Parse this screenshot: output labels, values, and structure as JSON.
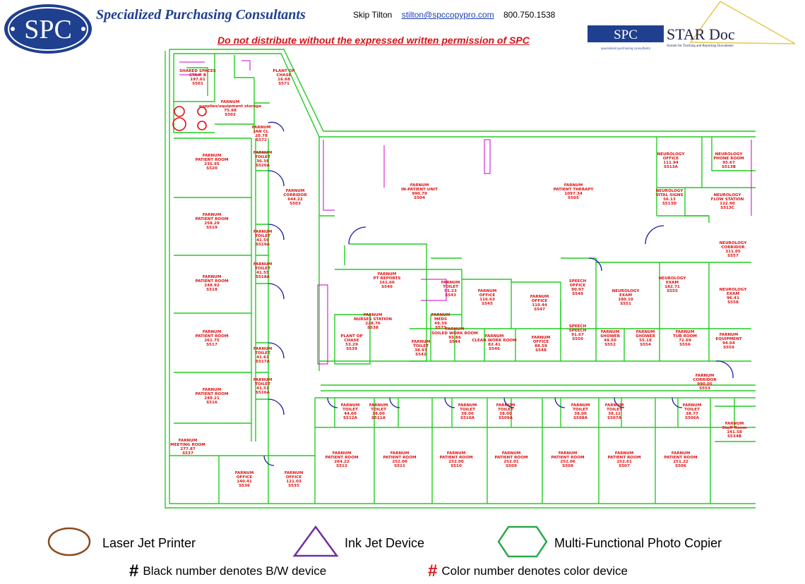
{
  "header": {
    "logo_text": "SPC",
    "company": "Specialized Purchasing Consultants",
    "contact_name": "Skip Tilton",
    "contact_email": "stilton@spccopypro.com",
    "contact_phone": "800.750.1538",
    "warning": "Do not distribute without the expressed written permission of SPC",
    "star_logo_left": "SPC",
    "star_logo_right": "STAR Doc",
    "star_logo_sub_left": "specialized purchasing consultants",
    "star_logo_sub_right": "System for Tracking and Reporting Documents"
  },
  "colors": {
    "walls": "#22cc22",
    "labels": "#e01010",
    "doors": "#1a1aaa",
    "furniture": "#cc00cc",
    "logo_blue": "#1f3f8f",
    "warning_red": "#d0141a"
  },
  "rooms": [
    {
      "lines": [
        "SHARED SPACES",
        "STAIR B",
        "197.61",
        "S501"
      ]
    },
    {
      "lines": [
        "PLANT OP",
        "CHASE",
        "16.68",
        "S571"
      ]
    },
    {
      "lines": [
        "FARNUM",
        "supplies/equipment storage",
        "75.98",
        "S502"
      ]
    },
    {
      "lines": [
        "FARNUM",
        "JAN CL",
        "20.78",
        "S572"
      ]
    },
    {
      "lines": [
        "FARNUM",
        "PATIENT ROOM",
        "235.95",
        "S520"
      ]
    },
    {
      "lines": [
        "FARNUM",
        "TOILET",
        "36.38",
        "S520A"
      ]
    },
    {
      "lines": [
        "FARNUM",
        "CORRIDOR",
        "644.22",
        "S503"
      ]
    },
    {
      "lines": [
        "FARNUM",
        "PATIENT ROOM",
        "258.29",
        "S519"
      ]
    },
    {
      "lines": [
        "FARNUM",
        "TOILET",
        "41.59",
        "S519A"
      ]
    },
    {
      "lines": [
        "FARNUM",
        "TOILET",
        "41.55",
        "S518A"
      ]
    },
    {
      "lines": [
        "FARNUM",
        "PATIENT ROOM",
        "248.92",
        "S518"
      ]
    },
    {
      "lines": [
        "FARNUM",
        "PATIENT ROOM",
        "261.75",
        "S517"
      ]
    },
    {
      "lines": [
        "FARNUM",
        "TOILET",
        "41.63",
        "S517A"
      ]
    },
    {
      "lines": [
        "FARNUM",
        "TOILET",
        "41.51",
        "S516A"
      ]
    },
    {
      "lines": [
        "FARNUM",
        "PATIENT ROOM",
        "249.21",
        "S516"
      ]
    },
    {
      "lines": [
        "FARNUM",
        "MEETING ROOM",
        "277.87",
        "S537"
      ]
    },
    {
      "lines": [
        "FARNUM",
        "OFFICE",
        "140.41",
        "S536"
      ]
    },
    {
      "lines": [
        "FARNUM",
        "OFFICE",
        "121.03",
        "S535"
      ]
    },
    {
      "lines": [
        "FARNUM",
        "IN-PATIENT UNIT",
        "990.79",
        "S504"
      ]
    },
    {
      "lines": [
        "FARNUM",
        "PATIENT THERAPY",
        "1097.34",
        "S505"
      ]
    },
    {
      "lines": [
        "NEUROLOGY",
        "OFFICE",
        "111.94",
        "S513A"
      ]
    },
    {
      "lines": [
        "NEUROLOGY",
        "PHONE ROOM",
        "95.67",
        "S513B"
      ]
    },
    {
      "lines": [
        "NEUROLOGY",
        "VITAL SIGNS",
        "56.13",
        "S513D"
      ]
    },
    {
      "lines": [
        "NEUROLOGY",
        "FLOW STATION",
        "122.90",
        "S513C"
      ]
    },
    {
      "lines": [
        "NEUROLOGY",
        "CORRIDOR",
        "311.05",
        "S557"
      ]
    },
    {
      "lines": [
        "FARNUM",
        "PT REPORTS",
        "161.60",
        "S540"
      ]
    },
    {
      "lines": [
        "FARNUM",
        "TOILET",
        "55.23",
        "S543"
      ]
    },
    {
      "lines": [
        "FARNUM",
        "OFFICE",
        "116.63",
        "S545"
      ]
    },
    {
      "lines": [
        "FARNUM",
        "OFFICE",
        "110.44",
        "S547"
      ]
    },
    {
      "lines": [
        "SPEECH",
        "OFFICE",
        "90.97",
        "S549"
      ]
    },
    {
      "lines": [
        "NEUROLOGY",
        "EXAM",
        "180.10",
        "S551"
      ]
    },
    {
      "lines": [
        "NEUROLOGY",
        "EXAM",
        "182.71",
        "S555"
      ]
    },
    {
      "lines": [
        "NEUROLOGY",
        "EXAM",
        "96.41",
        "S558"
      ]
    },
    {
      "lines": [
        "FARNUM",
        "NURSES STATION",
        "228.76",
        "S538"
      ]
    },
    {
      "lines": [
        "FARNUM",
        "MEDS",
        "49.39",
        "S573"
      ]
    },
    {
      "lines": [
        "PLANT OP",
        "CHASE",
        "53.29",
        "S539"
      ]
    },
    {
      "lines": [
        "FARNUM",
        "SOILED WORK ROOM",
        "93.86",
        "S544"
      ]
    },
    {
      "lines": [
        "FARNUM",
        "CLEAN WORK ROOM",
        "82.41",
        "S546"
      ]
    },
    {
      "lines": [
        "FARNUM",
        "OFFICE",
        "88.59",
        "S548"
      ]
    },
    {
      "lines": [
        "FARNUM",
        "TOILET",
        "38.93",
        "S542"
      ]
    },
    {
      "lines": [
        "SPEECH",
        "SPEECH",
        "91.67",
        "S550"
      ]
    },
    {
      "lines": [
        "FARNUM",
        "SHOWER",
        "49.50",
        "S552"
      ]
    },
    {
      "lines": [
        "FARNUM",
        "SHOWER",
        "55.18",
        "S554"
      ]
    },
    {
      "lines": [
        "FARNUM",
        "TUB ROOM",
        "72.69",
        "S556"
      ]
    },
    {
      "lines": [
        "FARNUM",
        "EQUIPMENT",
        "94.04",
        "S559"
      ]
    },
    {
      "lines": [
        "FARNUM",
        "CORRIDOR",
        "990.05",
        "S553"
      ]
    },
    {
      "lines": [
        "FARNUM",
        "TOILET",
        "44.00",
        "S512A"
      ]
    },
    {
      "lines": [
        "FARNUM",
        "TOILET",
        "38.00",
        "S511A"
      ]
    },
    {
      "lines": [
        "FARNUM",
        "TOILET",
        "38.00",
        "S510A"
      ]
    },
    {
      "lines": [
        "FARNUM",
        "TOILET",
        "38.00",
        "S509A"
      ]
    },
    {
      "lines": [
        "FARNUM",
        "TOILET",
        "38.00",
        "S508A"
      ]
    },
    {
      "lines": [
        "FARNUM",
        "TOILET",
        "38.12",
        "S507A"
      ]
    },
    {
      "lines": [
        "FARNUM",
        "TOILET",
        "38.77",
        "S506A"
      ]
    },
    {
      "lines": [
        "FARNUM",
        "Staff Room",
        "141.58",
        "S534B"
      ]
    },
    {
      "lines": [
        "FARNUM",
        "PATIENT ROOM",
        "264.22",
        "S512"
      ]
    },
    {
      "lines": [
        "FARNUM",
        "PATIENT ROOM",
        "252.00",
        "S511"
      ]
    },
    {
      "lines": [
        "FARNUM",
        "PATIENT ROOM",
        "252.00",
        "S510"
      ]
    },
    {
      "lines": [
        "FARNUM",
        "PATIENT ROOM",
        "252.01",
        "S509"
      ]
    },
    {
      "lines": [
        "FARNUM",
        "PATIENT ROOM",
        "252.06",
        "S508"
      ]
    },
    {
      "lines": [
        "FARNUM",
        "PATIENT ROOM",
        "252.61",
        "S507"
      ]
    },
    {
      "lines": [
        "FARNUM",
        "PATIENT ROOM",
        "251.22",
        "S506"
      ]
    }
  ],
  "legend": {
    "items": [
      {
        "label": "Laser Jet Printer",
        "shape": "circle",
        "color": "#8a4a1c"
      },
      {
        "label": "Ink Jet Device",
        "shape": "triangle",
        "color": "#7030a0"
      },
      {
        "label": "Multi-Functional Photo Copier",
        "shape": "hexagon",
        "color": "#2ca84a"
      }
    ],
    "bw_hash": "#",
    "bw_note": "Black number denotes B/W device",
    "color_hash": "#",
    "color_note": "Color number denotes color device"
  }
}
